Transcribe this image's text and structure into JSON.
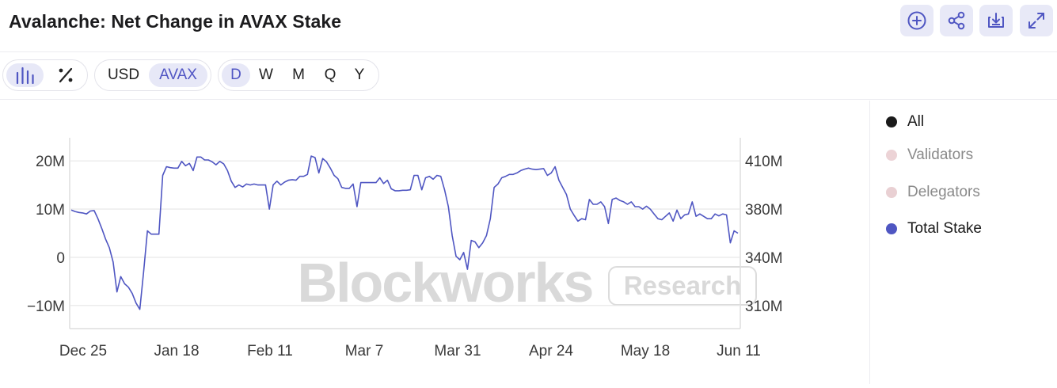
{
  "header": {
    "title": "Avalanche: Net Change in AVAX Stake",
    "buttons": [
      {
        "name": "add-icon",
        "label": "add"
      },
      {
        "name": "share-icon",
        "label": "share"
      },
      {
        "name": "download-icon",
        "label": "download"
      },
      {
        "name": "expand-icon",
        "label": "expand"
      }
    ]
  },
  "toolbar": {
    "chart_types": [
      {
        "icon": "bar-chart-icon",
        "active": true
      },
      {
        "icon": "percent-icon",
        "active": false
      }
    ],
    "currency": [
      {
        "label": "USD",
        "active": false
      },
      {
        "label": "AVAX",
        "active": true
      }
    ],
    "timeframes": [
      {
        "label": "D",
        "active": true
      },
      {
        "label": "W",
        "active": false
      },
      {
        "label": "M",
        "active": false
      },
      {
        "label": "Q",
        "active": false
      },
      {
        "label": "Y",
        "active": false
      }
    ]
  },
  "watermark": {
    "brand": "Blockworks",
    "tag": "Research"
  },
  "legend": [
    {
      "label": "All",
      "color": "#1a1a1a",
      "muted": false
    },
    {
      "label": "Validators",
      "color": "#ecd3d6",
      "muted": true
    },
    {
      "label": "Delegators",
      "color": "#e9d0d3",
      "muted": true
    },
    {
      "label": "Total Stake",
      "color": "#4f56c2",
      "muted": false
    }
  ],
  "chart_data": {
    "type": "line",
    "x_tick_labels": [
      "Dec 25",
      "Jan 18",
      "Feb 11",
      "Mar 7",
      "Mar 31",
      "Apr 24",
      "May 18",
      "Jun 11"
    ],
    "x_range": [
      "Dec 21",
      "Jun 13"
    ],
    "y_left": {
      "ticks": [
        20,
        10,
        0,
        -10
      ],
      "tick_labels": [
        "20M",
        "10M",
        "0",
        "−10M"
      ],
      "range": [
        -14.8,
        24.8
      ]
    },
    "y_right": {
      "ticks": [
        410,
        380,
        340,
        310
      ],
      "tick_labels": [
        "410M",
        "380M",
        "340M",
        "310M"
      ]
    },
    "grid": true,
    "legend_position": "right",
    "series": [
      {
        "name": "Total Stake",
        "color": "#4f56c2",
        "axis": "left",
        "values": [
          9.8,
          9.5,
          9.3,
          9.2,
          9.0,
          9.6,
          9.7,
          8.0,
          6.0,
          3.8,
          2.0,
          -1.0,
          -7.2,
          -4.0,
          -5.5,
          -6.2,
          -7.5,
          -9.5,
          -10.8,
          -3.0,
          5.5,
          4.8,
          4.8,
          4.8,
          17.0,
          18.8,
          18.6,
          18.5,
          18.5,
          19.9,
          19.0,
          19.5,
          18.0,
          20.8,
          20.8,
          20.2,
          20.2,
          19.8,
          19.2,
          19.9,
          19.4,
          18.0,
          15.8,
          14.5,
          15.0,
          14.6,
          15.2,
          15.0,
          15.2,
          15.0,
          15.0,
          15.0,
          10.0,
          15.0,
          15.8,
          15.0,
          15.6,
          16.0,
          16.1,
          16.0,
          16.8,
          16.8,
          17.2,
          21.0,
          20.7,
          17.5,
          20.5,
          19.8,
          18.5,
          17.0,
          16.3,
          14.5,
          14.3,
          14.3,
          15.2,
          10.5,
          15.5,
          15.5,
          15.5,
          15.5,
          15.5,
          16.5,
          15.3,
          16.0,
          14.2,
          13.8,
          13.8,
          13.9,
          13.9,
          14.0,
          17.0,
          17.0,
          14.0,
          16.5,
          16.8,
          16.2,
          17.0,
          16.8,
          14.0,
          10.5,
          4.5,
          0.2,
          -0.5,
          1.0,
          -2.5,
          3.5,
          3.2,
          2.0,
          3.0,
          4.5,
          8.0,
          14.5,
          15.2,
          16.5,
          16.8,
          17.2,
          17.2,
          17.5,
          18.0,
          18.3,
          18.5,
          18.3,
          18.2,
          18.3,
          18.4,
          17.0,
          17.5,
          18.8,
          16.0,
          14.5,
          13.0,
          10.0,
          8.7,
          7.5,
          8.0,
          7.8,
          12.0,
          11.0,
          11.0,
          11.5,
          10.5,
          7.0,
          12.0,
          12.3,
          11.8,
          11.5,
          11.0,
          11.5,
          10.5,
          10.5,
          10.0,
          10.6,
          10.0,
          9.0,
          8.0,
          7.8,
          8.5,
          9.2,
          7.5,
          9.8,
          8.0,
          8.8,
          9.0,
          11.5,
          8.5,
          9.0,
          8.5,
          8.0,
          8.0,
          9.0,
          8.6,
          9.0,
          8.8,
          3.0,
          5.5,
          5.0
        ]
      }
    ]
  }
}
